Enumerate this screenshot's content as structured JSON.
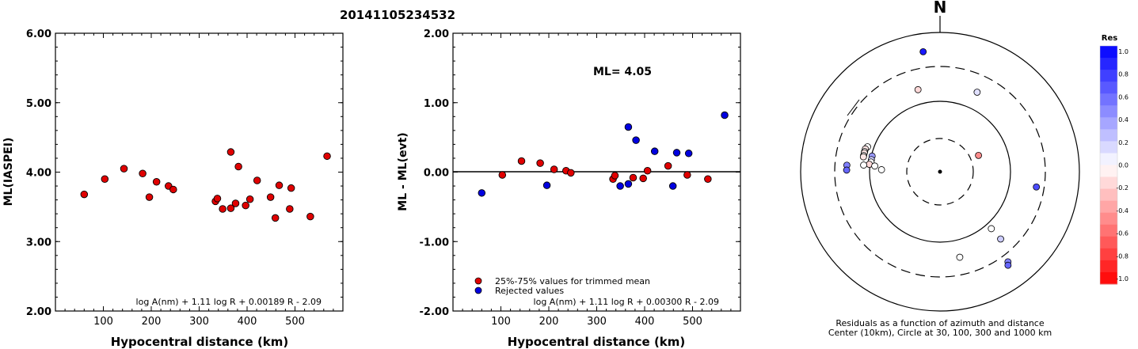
{
  "title": "20141105234532",
  "colors": {
    "retained": "#e00000",
    "rejected": "#0000e0",
    "axis": "#000000"
  },
  "chart_data": [
    {
      "type": "scatter",
      "ylabel": "ML(IASPEI)",
      "xlabel": "Hypocentral distance (km)",
      "xlim": [
        0,
        600
      ],
      "ylim": [
        2.0,
        6.0
      ],
      "xticks": [
        "100",
        "200",
        "300",
        "400",
        "500"
      ],
      "yticks": [
        "2.00",
        "3.00",
        "4.00",
        "5.00",
        "6.00"
      ],
      "formula": "log A(nm) + 1.11 log R + 0.00189 R - 2.09",
      "series": [
        {
          "values": [
            [
              60,
              3.68
            ],
            [
              103,
              3.9
            ],
            [
              143,
              4.05
            ],
            [
              182,
              3.98
            ],
            [
              196,
              3.64
            ],
            [
              211,
              3.86
            ],
            [
              236,
              3.8
            ],
            [
              246,
              3.75
            ],
            [
              334,
              3.58
            ],
            [
              338,
              3.62
            ],
            [
              349,
              3.47
            ],
            [
              366,
              4.29
            ],
            [
              366,
              3.48
            ],
            [
              376,
              3.55
            ],
            [
              382,
              4.08
            ],
            [
              397,
              3.52
            ],
            [
              406,
              3.61
            ],
            [
              421,
              3.88
            ],
            [
              449,
              3.64
            ],
            [
              459,
              3.34
            ],
            [
              467,
              3.81
            ],
            [
              489,
              3.47
            ],
            [
              492,
              3.77
            ],
            [
              532,
              3.36
            ],
            [
              567,
              4.23
            ]
          ]
        }
      ]
    },
    {
      "type": "scatter",
      "ylabel": "ML - ML(evt)",
      "xlabel": "Hypocentral distance (km)",
      "xlim": [
        0,
        600
      ],
      "ylim": [
        -2.0,
        2.0
      ],
      "xticks": [
        "100",
        "200",
        "300",
        "400",
        "500"
      ],
      "yticks": [
        "-2.00",
        "-1.00",
        "0.00",
        "1.00",
        "2.00"
      ],
      "annotation": "ML= 4.05",
      "formula": "log A(nm) + 1.11 log R + 0.00300 R - 2.09",
      "legend": [
        "25%-75% values for trimmed mean",
        "Rejected values"
      ],
      "series": [
        {
          "name": "25%-75% values for trimmed mean",
          "values": [
            [
              103,
              -0.04
            ],
            [
              143,
              0.16
            ],
            [
              182,
              0.13
            ],
            [
              211,
              0.04
            ],
            [
              236,
              0.02
            ],
            [
              246,
              -0.01
            ],
            [
              334,
              -0.1
            ],
            [
              338,
              -0.05
            ],
            [
              376,
              -0.08
            ],
            [
              397,
              -0.09
            ],
            [
              406,
              0.02
            ],
            [
              449,
              0.09
            ],
            [
              489,
              -0.04
            ],
            [
              532,
              -0.1
            ]
          ]
        },
        {
          "name": "Rejected values",
          "values": [
            [
              60,
              -0.3
            ],
            [
              196,
              -0.19
            ],
            [
              349,
              -0.2
            ],
            [
              366,
              -0.17
            ],
            [
              366,
              0.65
            ],
            [
              382,
              0.46
            ],
            [
              421,
              0.3
            ],
            [
              459,
              -0.2
            ],
            [
              467,
              0.28
            ],
            [
              492,
              0.27
            ],
            [
              567,
              0.82
            ]
          ]
        }
      ]
    },
    {
      "type": "polar-scatter",
      "north_label": "N",
      "caption_line1": "Residuals as a function of azimuth and distance",
      "caption_line2": "Center (10km), Circle at 30, 100, 300 and 1000 km",
      "colorbar_title": "Res",
      "colorbar_ticks": [
        "1.0",
        "0.8",
        "0.6",
        "0.4",
        "0.2",
        "0.0",
        "-0.2",
        "-0.4",
        "-0.6",
        "-0.8",
        "-1.0"
      ],
      "stations": [
        {
          "azimuth": 352,
          "ring": 0.87,
          "residual": 0.9
        },
        {
          "azimuth": 345,
          "ring": 0.61,
          "residual": -0.15
        },
        {
          "azimuth": 25,
          "ring": 0.63,
          "residual": 0.12
        },
        {
          "azimuth": 289,
          "ring": 0.55,
          "residual": 0.0
        },
        {
          "azimuth": 287,
          "ring": 0.56,
          "residual": -0.1
        },
        {
          "azimuth": 285,
          "ring": 0.56,
          "residual": 0.0
        },
        {
          "azimuth": 284,
          "ring": 0.56,
          "residual": -0.1
        },
        {
          "azimuth": 282,
          "ring": 0.56,
          "residual": 0.0
        },
        {
          "azimuth": 281,
          "ring": 0.56,
          "residual": -0.1
        },
        {
          "azimuth": 283,
          "ring": 0.5,
          "residual": 0.4
        },
        {
          "azimuth": 280,
          "ring": 0.5,
          "residual": 0.2
        },
        {
          "azimuth": 278,
          "ring": 0.5,
          "residual": 0.0
        },
        {
          "azimuth": 276,
          "ring": 0.51,
          "residual": -0.15
        },
        {
          "azimuth": 275,
          "ring": 0.47,
          "residual": 0.0
        },
        {
          "azimuth": 272,
          "ring": 0.42,
          "residual": 0.0
        },
        {
          "azimuth": 275,
          "ring": 0.55,
          "residual": 0.0
        },
        {
          "azimuth": 274,
          "ring": 0.67,
          "residual": 0.5
        },
        {
          "azimuth": 271,
          "ring": 0.67,
          "residual": 0.6
        },
        {
          "azimuth": 67,
          "ring": 0.3,
          "residual": -0.45
        },
        {
          "azimuth": 99,
          "ring": 0.7,
          "residual": 0.7
        },
        {
          "azimuth": 138,
          "ring": 0.55,
          "residual": 0.0
        },
        {
          "azimuth": 138,
          "ring": 0.65,
          "residual": 0.2
        },
        {
          "azimuth": 143,
          "ring": 0.81,
          "residual": 0.5
        },
        {
          "azimuth": 144,
          "ring": 0.83,
          "residual": 0.6
        },
        {
          "azimuth": 167,
          "ring": 0.63,
          "residual": 0.0
        }
      ]
    }
  ]
}
